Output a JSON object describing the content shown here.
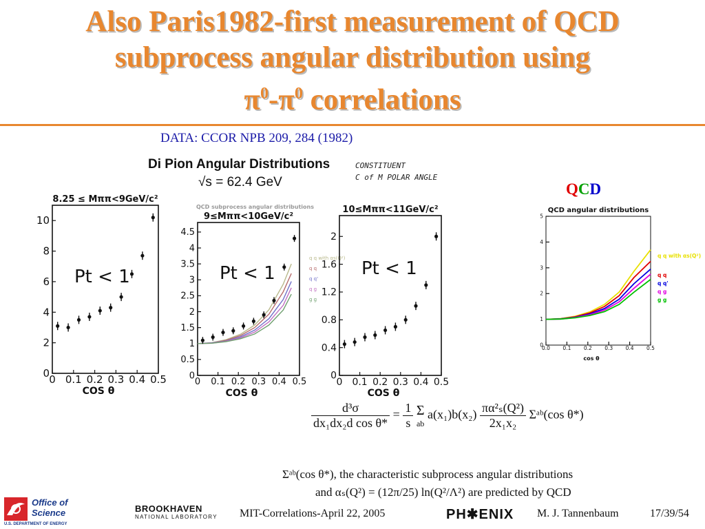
{
  "slide": {
    "title_line1": "Also Paris1982-first measurement of QCD",
    "title_line2": "subprocess angular distribution using",
    "title_line3_pi1": "π",
    "title_line3_sup1": "0",
    "title_line3_dash": "-π",
    "title_line3_sup2": "0",
    "title_line3_rest": " correlations",
    "data_reference": "DATA: CCOR NPB 209, 284 (1982)",
    "handwritten_heading": "Di Pion Angular Distributions",
    "sqrt_s": "√s = 62.4 GeV",
    "constituent_note_1": "CONSTITUENT",
    "constituent_note_2": "C of M POLAR ANGLE",
    "qcd_q1": "Q",
    "qcd_c": "C",
    "qcd_d": "D",
    "colors": {
      "title": "#e8872f",
      "reference": "#1a1aa8",
      "qcd_q": "#e00000",
      "qcd_c": "#00a000",
      "qcd_d": "#0000cc"
    }
  },
  "formula": {
    "lhs_num": "d³σ",
    "lhs_den": "dx₁dx₂d cos θ*",
    "eq": "=",
    "one": "1",
    "s": "s",
    "sum": "Σ",
    "sum_sub": "ab",
    "mid": "a(x₁)b(x₂)",
    "alpha_num": "πα²ₛ(Q²)",
    "alpha_den": "2x₁x₂",
    "tail": "Σᵃᵇ(cos θ*)"
  },
  "description": {
    "line1": "Σᵃᵇ(cos θ*), the characteristic subprocess angular distributions",
    "line2": "and αₛ(Q²) = (12π/25) ln(Q²/Λ²) are predicted by QCD"
  },
  "footer": {
    "office_line1": "Office of",
    "office_line2": "Science",
    "office_line3": "U.S. DEPARTMENT OF ENERGY",
    "bnl_line1": "BROOKHAVEN",
    "bnl_line2": "NATIONAL LABORATORY",
    "event": "MIT-Correlations-April 22, 2005",
    "phenix": "PH✱ENIX",
    "author": "M. J. Tannenbaum",
    "page": "17/39/54"
  },
  "chart_data": [
    {
      "type": "scatter",
      "title": "8.25 ≤ Mππ<9GeV/c²",
      "annotation": "Pt < 1",
      "xlabel": "COS θ",
      "ylabel": "",
      "xlim": [
        0,
        0.5
      ],
      "ylim": [
        0,
        11
      ],
      "xticks": [
        "0",
        "0.1",
        "0.2",
        "0.3",
        "0.4",
        "0.5"
      ],
      "yticks": [
        "0",
        "2",
        "4",
        "6",
        "8",
        "10"
      ],
      "series": [
        {
          "x": [
            0.025,
            0.075,
            0.125,
            0.175,
            0.225,
            0.275,
            0.325,
            0.375,
            0.425,
            0.475
          ],
          "y": [
            3.1,
            3.0,
            3.5,
            3.7,
            4.1,
            4.3,
            5.0,
            6.5,
            7.7,
            10.2
          ]
        }
      ]
    },
    {
      "type": "scatter",
      "title": "9≤Mππ<10GeV/c²",
      "annotation": "Pt < 1",
      "xlabel": "COS θ",
      "ylabel": "",
      "xlim": [
        0,
        0.5
      ],
      "ylim": [
        0,
        4.8
      ],
      "xticks": [
        "0",
        "0.1",
        "0.2",
        "0.3",
        "0.4",
        "0.5"
      ],
      "yticks": [
        "0",
        "0.5",
        "1",
        "1.5",
        "2",
        "2.5",
        "3",
        "3.5",
        "4",
        "4.5"
      ],
      "series": [
        {
          "x": [
            0.025,
            0.075,
            0.125,
            0.175,
            0.225,
            0.275,
            0.325,
            0.375,
            0.425,
            0.475
          ],
          "y": [
            1.1,
            1.2,
            1.35,
            1.4,
            1.55,
            1.7,
            1.9,
            2.35,
            3.4,
            4.3
          ]
        }
      ],
      "curves": [
        {
          "name": "q q with αs(Q²)",
          "color": "#b8b88a",
          "y": [
            1.0,
            1.03,
            1.12,
            1.29,
            1.58,
            2.06,
            2.86,
            3.5
          ]
        },
        {
          "name": "q q",
          "color": "#b56a6a",
          "y": [
            1.0,
            1.02,
            1.1,
            1.25,
            1.5,
            1.92,
            2.62,
            3.2
          ]
        },
        {
          "name": "q q'",
          "color": "#7070c8",
          "y": [
            1.0,
            1.02,
            1.08,
            1.21,
            1.42,
            1.78,
            2.38,
            2.95
          ]
        },
        {
          "name": "q g",
          "color": "#c070c0",
          "y": [
            1.0,
            1.01,
            1.07,
            1.18,
            1.36,
            1.68,
            2.2,
            2.75
          ]
        },
        {
          "name": "g g",
          "color": "#70a070",
          "y": [
            1.0,
            1.01,
            1.06,
            1.15,
            1.3,
            1.58,
            2.05,
            2.55
          ]
        }
      ],
      "curve_x": [
        0,
        0.07,
        0.14,
        0.21,
        0.28,
        0.35,
        0.42,
        0.46
      ],
      "overlay_label": "QCD subprocess angular distributions"
    },
    {
      "type": "scatter",
      "title": "10≤Mππ<11GeV/c²",
      "annotation": "Pt < 1",
      "xlabel": "COS θ",
      "ylabel": "",
      "xlim": [
        0,
        0.5
      ],
      "ylim": [
        0,
        2.3
      ],
      "xticks": [
        "0",
        "0.1",
        "0.2",
        "0.3",
        "0.4",
        "0.5"
      ],
      "yticks": [
        "0",
        "0.4",
        "0.8",
        "1.2",
        "1.6",
        "2"
      ],
      "series": [
        {
          "x": [
            0.025,
            0.075,
            0.125,
            0.175,
            0.225,
            0.275,
            0.325,
            0.375,
            0.425,
            0.475
          ],
          "y": [
            0.45,
            0.48,
            0.55,
            0.58,
            0.65,
            0.7,
            0.8,
            1.0,
            1.3,
            2.0
          ]
        }
      ]
    },
    {
      "type": "line",
      "title": "QCD angular distributions",
      "xlabel": "cos θ",
      "ylabel": "",
      "xlim": [
        0,
        0.5
      ],
      "ylim": [
        0,
        5
      ],
      "xticks": [
        "0.0",
        "0.1",
        "0.2",
        "0.3",
        "0.4",
        "0.5"
      ],
      "yticks": [
        "0",
        "1",
        "2",
        "3",
        "4",
        "5"
      ],
      "x": [
        0,
        0.07,
        0.14,
        0.21,
        0.28,
        0.35,
        0.42,
        0.5
      ],
      "series": [
        {
          "name": "q q with αs(Q²)",
          "color": "#e8e000",
          "y": [
            1.0,
            1.03,
            1.12,
            1.29,
            1.58,
            2.06,
            2.86,
            3.7
          ]
        },
        {
          "name": "q q",
          "color": "#e00000",
          "y": [
            1.0,
            1.02,
            1.1,
            1.25,
            1.5,
            1.92,
            2.62,
            3.25
          ]
        },
        {
          "name": "q q'",
          "color": "#0000e0",
          "y": [
            1.0,
            1.02,
            1.08,
            1.21,
            1.42,
            1.78,
            2.38,
            2.95
          ]
        },
        {
          "name": "q g",
          "color": "#e000e0",
          "y": [
            1.0,
            1.01,
            1.07,
            1.18,
            1.36,
            1.68,
            2.2,
            2.75
          ]
        },
        {
          "name": "g g",
          "color": "#00c000",
          "y": [
            1.0,
            1.01,
            1.06,
            1.15,
            1.3,
            1.58,
            2.05,
            2.55
          ]
        }
      ]
    }
  ]
}
